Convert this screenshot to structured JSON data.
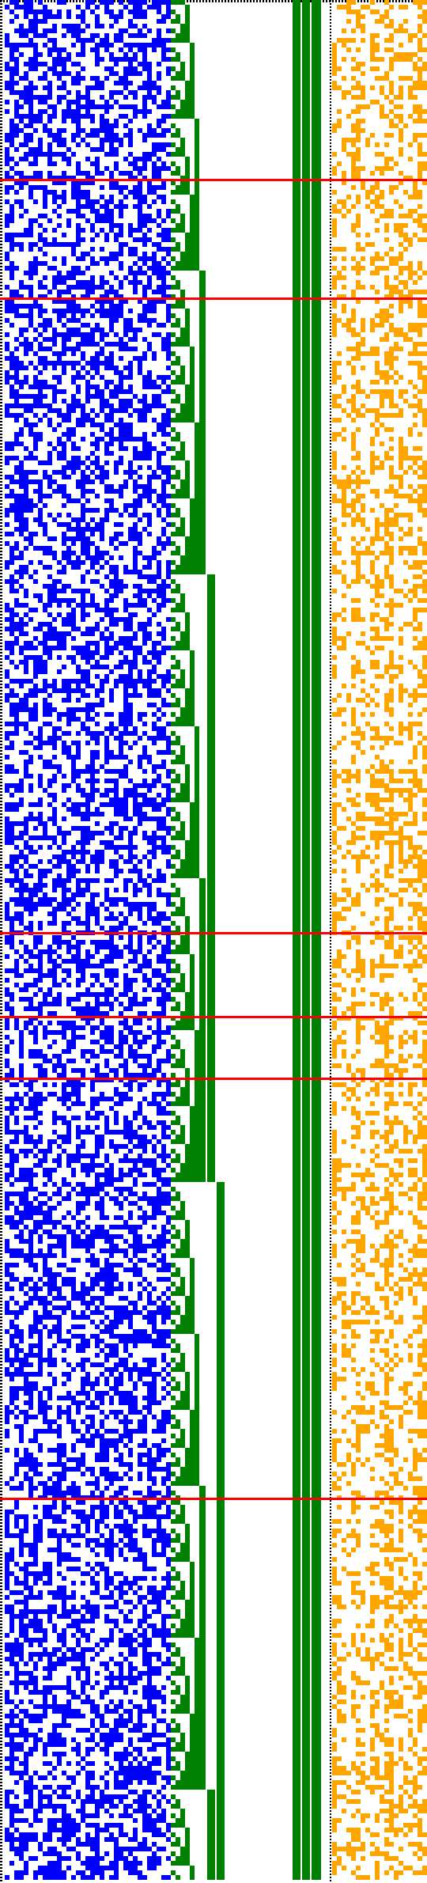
{
  "colors": {
    "background": "#ffffff",
    "cells": "#0000ff",
    "counter": "#008000",
    "bits": "#ffa500",
    "markers": "#ff0000",
    "border": "#000000"
  },
  "regions": {
    "border": {
      "name": "dotted-border",
      "color_key": "border"
    },
    "cells": {
      "name": "blue-cell-field",
      "color_key": "cells",
      "density": 0.5
    },
    "counter": {
      "name": "green-binary-counter",
      "color_key": "counter"
    },
    "bits": {
      "name": "orange-bit-field",
      "color_key": "bits",
      "density": 0.35
    },
    "markers": {
      "name": "red-marker-lines",
      "color_key": "markers"
    }
  }
}
